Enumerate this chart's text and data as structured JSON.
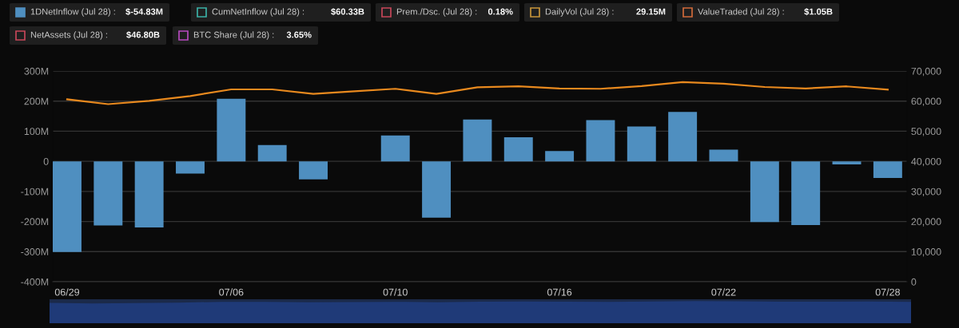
{
  "chart_data": {
    "type": "bar",
    "categories": [
      "06/29",
      null,
      null,
      null,
      "07/06",
      null,
      null,
      null,
      "07/10",
      null,
      null,
      null,
      "07/16",
      null,
      null,
      null,
      "07/22",
      null,
      null,
      null,
      "07/28"
    ],
    "series": [
      {
        "color": "#4f8fc0",
        "values": [
          -301,
          -213,
          -220,
          -41,
          208,
          54,
          -60,
          0,
          86,
          -187,
          139,
          80,
          34,
          137,
          116,
          164,
          39,
          -202,
          -212,
          -10,
          -55
        ]
      },
      {
        "type": "line",
        "axis": "y2",
        "color": "#e8891e",
        "marker": "none",
        "line_style": "solid",
        "values": [
          60600,
          59000,
          60100,
          61700,
          63900,
          63900,
          62400,
          63300,
          64100,
          62400,
          64600,
          64900,
          64200,
          64100,
          65000,
          66300,
          65800,
          64700,
          64200,
          64900,
          63800
        ]
      }
    ],
    "ylim": [
      -400,
      300
    ],
    "yticks": [
      {
        "value": -400,
        "label": "-400M"
      },
      {
        "value": -300,
        "label": "-300M"
      },
      {
        "value": -200,
        "label": "-200M"
      },
      {
        "value": -100,
        "label": "-100M"
      },
      0,
      {
        "value": 100,
        "label": "100M"
      },
      {
        "value": 200,
        "label": "200M"
      },
      {
        "value": 300,
        "label": "300M"
      }
    ],
    "y2lim": [
      0,
      70000
    ],
    "y2ticks": [
      0,
      {
        "value": 10000,
        "label": "10,000"
      },
      {
        "value": 20000,
        "label": "20,000"
      },
      {
        "value": 30000,
        "label": "30,000"
      },
      {
        "value": 40000,
        "label": "40,000"
      },
      {
        "value": 50000,
        "label": "50,000"
      },
      {
        "value": 60000,
        "label": "60,000"
      },
      {
        "value": 70000,
        "label": "70,000"
      }
    ],
    "grid": "y",
    "legend": false,
    "annotations": [
      "1DNetInflow (Jul 28) :",
      "$-54.83M",
      "CumNetInflow (Jul 28) :",
      "$60.33B",
      "Prem./Dsc. (Jul 28) :",
      "0.18%",
      "DailyVol (Jul 28) :",
      "29.15M",
      "ValueTraded (Jul 28) :",
      "$1.05B",
      "NetAssets (Jul 28) :",
      "$46.80B",
      "BTC Share (Jul 28) :",
      "3.65%"
    ]
  }
}
